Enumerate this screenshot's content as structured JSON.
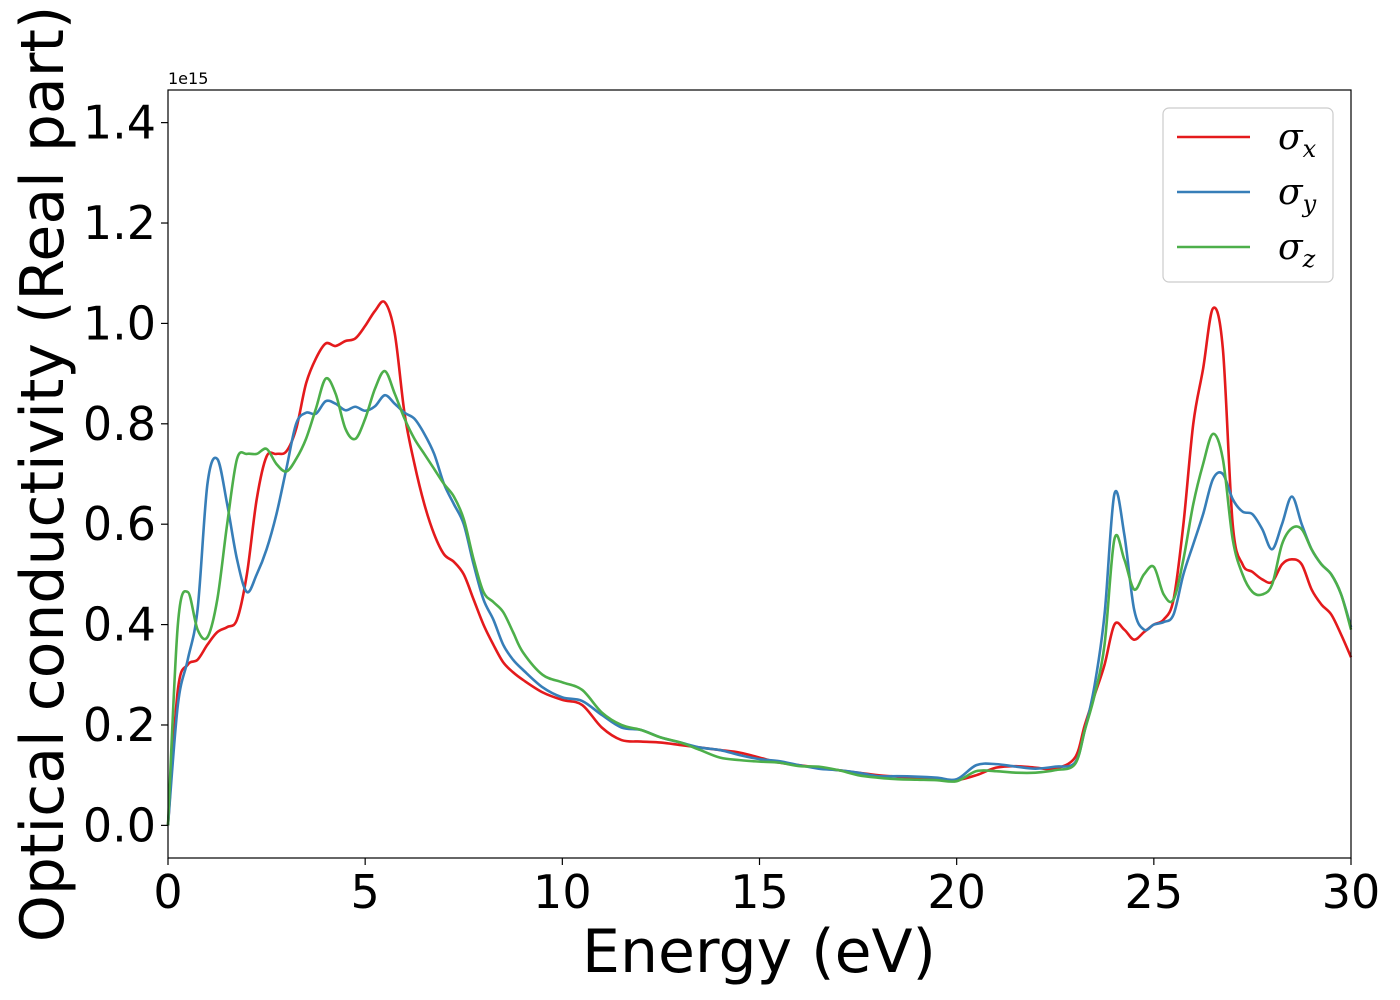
{
  "chart_data": {
    "type": "line",
    "xlabel": "Energy (eV)",
    "ylabel": "Optical conductivity (Real part)",
    "y_offset_label": "1e15",
    "xlim": [
      0,
      30
    ],
    "ylim": [
      -0.065,
      1.465
    ],
    "x_ticks": [
      0,
      5,
      10,
      15,
      20,
      25,
      30
    ],
    "x_tick_labels": [
      "0",
      "5",
      "10",
      "15",
      "20",
      "25",
      "30"
    ],
    "y_ticks": [
      0.0,
      0.2,
      0.4,
      0.6,
      0.8,
      1.0,
      1.2,
      1.4
    ],
    "y_tick_labels": [
      "0.0",
      "0.2",
      "0.4",
      "0.6",
      "0.8",
      "1.0",
      "1.2",
      "1.4"
    ],
    "grid": false,
    "legend_position": "top-right",
    "x": [
      0,
      0.25,
      0.5,
      0.75,
      1.0,
      1.25,
      1.5,
      1.75,
      2.0,
      2.25,
      2.5,
      2.75,
      3.0,
      3.25,
      3.5,
      3.75,
      4.0,
      4.25,
      4.5,
      4.75,
      5.0,
      5.25,
      5.5,
      5.75,
      6.0,
      6.25,
      6.5,
      6.75,
      7.0,
      7.25,
      7.5,
      7.75,
      8.0,
      8.25,
      8.5,
      8.75,
      9.0,
      9.5,
      10.0,
      10.5,
      11.0,
      11.5,
      12.0,
      12.5,
      13.0,
      13.5,
      14.0,
      14.5,
      15.0,
      15.5,
      16.0,
      16.5,
      17.0,
      17.5,
      18.0,
      18.5,
      19.0,
      19.5,
      20.0,
      20.5,
      21.0,
      21.5,
      22.0,
      22.5,
      23.0,
      23.25,
      23.5,
      23.75,
      24.0,
      24.25,
      24.5,
      24.75,
      25.0,
      25.25,
      25.5,
      25.75,
      26.0,
      26.25,
      26.5,
      26.75,
      27.0,
      27.25,
      27.5,
      27.75,
      28.0,
      28.25,
      28.5,
      28.75,
      29.0,
      29.25,
      29.5,
      29.75,
      30.0
    ],
    "series": [
      {
        "name": "σx",
        "sub": "x",
        "color": "#e41a1c",
        "values": [
          0.0,
          0.27,
          0.32,
          0.33,
          0.36,
          0.385,
          0.395,
          0.41,
          0.5,
          0.65,
          0.735,
          0.74,
          0.745,
          0.79,
          0.88,
          0.93,
          0.96,
          0.955,
          0.965,
          0.97,
          0.995,
          1.025,
          1.042,
          0.98,
          0.82,
          0.72,
          0.64,
          0.58,
          0.54,
          0.525,
          0.5,
          0.45,
          0.4,
          0.36,
          0.325,
          0.305,
          0.29,
          0.265,
          0.25,
          0.24,
          0.195,
          0.17,
          0.167,
          0.165,
          0.16,
          0.155,
          0.15,
          0.145,
          0.135,
          0.125,
          0.12,
          0.115,
          0.11,
          0.105,
          0.1,
          0.097,
          0.094,
          0.091,
          0.09,
          0.1,
          0.115,
          0.118,
          0.115,
          0.113,
          0.135,
          0.2,
          0.26,
          0.32,
          0.4,
          0.39,
          0.37,
          0.385,
          0.4,
          0.41,
          0.45,
          0.6,
          0.8,
          0.91,
          1.03,
          0.95,
          0.6,
          0.52,
          0.505,
          0.49,
          0.485,
          0.52,
          0.53,
          0.52,
          0.47,
          0.44,
          0.42,
          0.38,
          0.335
        ]
      },
      {
        "name": "σy",
        "sub": "y",
        "color": "#377eb8",
        "values": [
          0.0,
          0.24,
          0.33,
          0.43,
          0.68,
          0.73,
          0.64,
          0.53,
          0.465,
          0.5,
          0.55,
          0.62,
          0.71,
          0.8,
          0.822,
          0.82,
          0.845,
          0.84,
          0.827,
          0.834,
          0.826,
          0.835,
          0.857,
          0.84,
          0.822,
          0.81,
          0.78,
          0.74,
          0.68,
          0.64,
          0.6,
          0.52,
          0.45,
          0.41,
          0.36,
          0.33,
          0.31,
          0.275,
          0.255,
          0.248,
          0.22,
          0.195,
          0.19,
          0.175,
          0.165,
          0.155,
          0.15,
          0.14,
          0.132,
          0.128,
          0.12,
          0.113,
          0.11,
          0.105,
          0.098,
          0.098,
          0.097,
          0.095,
          0.092,
          0.12,
          0.122,
          0.117,
          0.113,
          0.117,
          0.125,
          0.19,
          0.28,
          0.42,
          0.66,
          0.58,
          0.43,
          0.39,
          0.4,
          0.405,
          0.42,
          0.5,
          0.56,
          0.62,
          0.69,
          0.7,
          0.65,
          0.625,
          0.62,
          0.59,
          0.55,
          0.6,
          0.655,
          0.6,
          0.55,
          0.52,
          0.5,
          0.46,
          0.395
        ]
      },
      {
        "name": "σz",
        "sub": "z",
        "color": "#4daf4a",
        "values": [
          0.0,
          0.4,
          0.465,
          0.39,
          0.375,
          0.45,
          0.6,
          0.73,
          0.74,
          0.74,
          0.75,
          0.72,
          0.705,
          0.73,
          0.77,
          0.83,
          0.89,
          0.86,
          0.79,
          0.77,
          0.81,
          0.87,
          0.905,
          0.86,
          0.81,
          0.77,
          0.74,
          0.71,
          0.68,
          0.655,
          0.61,
          0.53,
          0.465,
          0.445,
          0.425,
          0.385,
          0.345,
          0.3,
          0.285,
          0.27,
          0.225,
          0.2,
          0.19,
          0.175,
          0.165,
          0.15,
          0.135,
          0.13,
          0.127,
          0.125,
          0.118,
          0.117,
          0.11,
          0.1,
          0.095,
          0.092,
          0.091,
          0.09,
          0.088,
          0.108,
          0.108,
          0.105,
          0.105,
          0.11,
          0.122,
          0.19,
          0.26,
          0.36,
          0.57,
          0.53,
          0.47,
          0.5,
          0.515,
          0.46,
          0.45,
          0.53,
          0.64,
          0.72,
          0.78,
          0.73,
          0.57,
          0.5,
          0.465,
          0.46,
          0.48,
          0.56,
          0.592,
          0.59,
          0.55,
          0.52,
          0.5,
          0.46,
          0.39
        ]
      }
    ]
  }
}
